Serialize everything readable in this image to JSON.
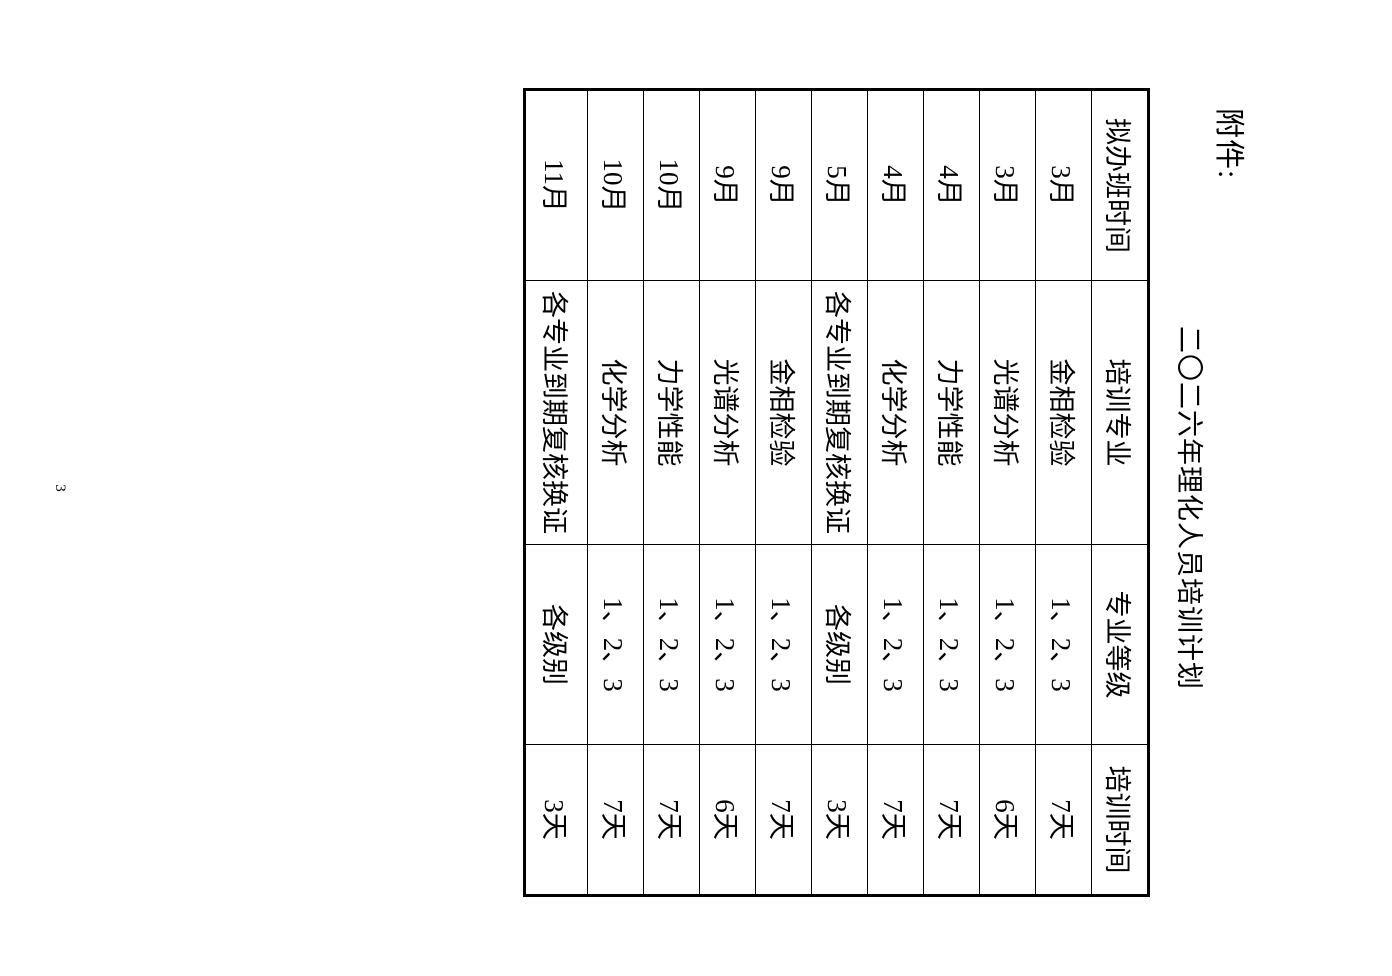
{
  "page": {
    "attachment_label": "附件:",
    "title": "二〇二六年理化人员培训计划",
    "page_number": "3"
  },
  "table": {
    "headers": [
      "拟办班时间",
      "培训专业",
      "专业等级",
      "培训时间"
    ],
    "rows": [
      [
        "3月",
        "金相检验",
        "1、2、3",
        "7天"
      ],
      [
        "3月",
        "光谱分析",
        "1、2、3",
        "6天"
      ],
      [
        "4月",
        "力学性能",
        "1、2、3",
        "7天"
      ],
      [
        "4月",
        "化学分析",
        "1、2、3",
        "7天"
      ],
      [
        "5月",
        "各专业到期复核换证",
        "各级别",
        "3天"
      ],
      [
        "9月",
        "金相检验",
        "1、2、3",
        "7天"
      ],
      [
        "9月",
        "光谱分析",
        "1、2、3",
        "6天"
      ],
      [
        "10月",
        "力学性能",
        "1、2、3",
        "7天"
      ],
      [
        "10月",
        "化学分析",
        "1、2、3",
        "7天"
      ],
      [
        "11月",
        "各专业到期复核换证",
        "各级别",
        "3天"
      ]
    ]
  }
}
